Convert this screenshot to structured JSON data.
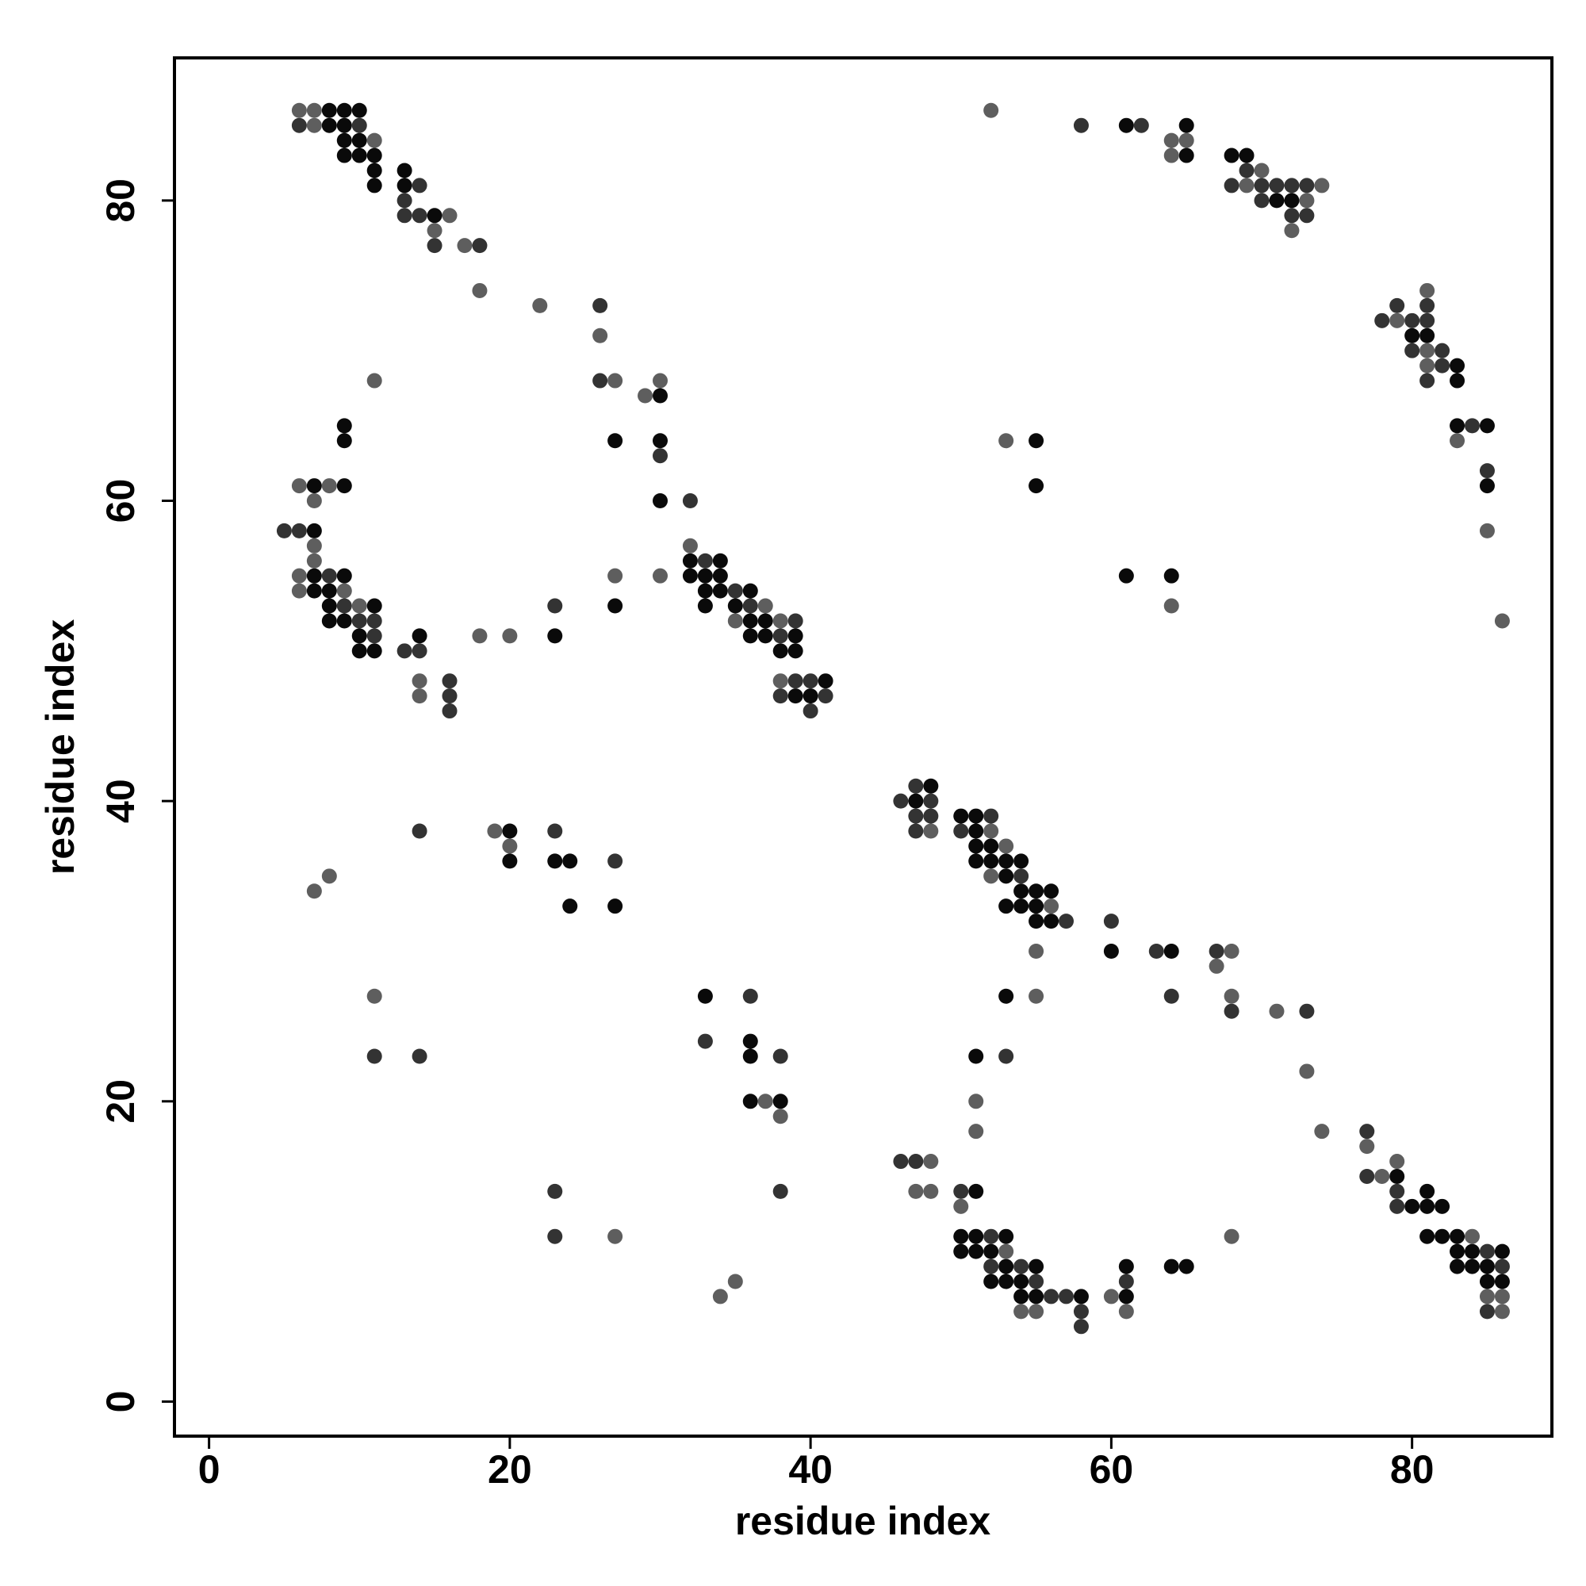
{
  "chart_data": {
    "type": "scatter",
    "xlabel": "residue index",
    "ylabel": "residue index",
    "xlim": [
      -2.3,
      89.3
    ],
    "ylim": [
      -2.3,
      89.5
    ],
    "xticks": [
      0,
      20,
      40,
      60,
      80
    ],
    "yticks": [
      0,
      20,
      40,
      60,
      80
    ],
    "grid": false,
    "series": [
      {
        "color": "#0a0a0a",
        "x": [
          8,
          9,
          10,
          8,
          9,
          61,
          65,
          9,
          10,
          9,
          10,
          11,
          65,
          68,
          69,
          11,
          13,
          11,
          13,
          71,
          72,
          15,
          80,
          81,
          83,
          83,
          30,
          9,
          83,
          85,
          9,
          27,
          30,
          55,
          7,
          9,
          55,
          85,
          30,
          7,
          32,
          34,
          7,
          9,
          32,
          33,
          34,
          61,
          64,
          7,
          8,
          33,
          34,
          36,
          8,
          11,
          27,
          33,
          35,
          8,
          9,
          36,
          37,
          10,
          14,
          23,
          36,
          37,
          39,
          10,
          11,
          38,
          39,
          41,
          39,
          40,
          48,
          47,
          50,
          51,
          20,
          51,
          51,
          52,
          20,
          23,
          24,
          51,
          52,
          53,
          54,
          53,
          54,
          55,
          56,
          24,
          27,
          53,
          54,
          55,
          55,
          56,
          60,
          64,
          33,
          53,
          36,
          36,
          51,
          36,
          38,
          79,
          51,
          81,
          80,
          81,
          82,
          50,
          51,
          53,
          81,
          82,
          83,
          50,
          51,
          52,
          83,
          84,
          86,
          53,
          55,
          61,
          64,
          65,
          83,
          84,
          85,
          52,
          53,
          54,
          85,
          86,
          54,
          55,
          58,
          61
        ],
        "y": [
          86,
          86,
          86,
          85,
          85,
          85,
          85,
          84,
          84,
          83,
          83,
          83,
          83,
          83,
          83,
          82,
          82,
          81,
          81,
          80,
          80,
          79,
          71,
          71,
          69,
          68,
          67,
          65,
          65,
          65,
          64,
          64,
          64,
          64,
          61,
          61,
          61,
          61,
          60,
          58,
          56,
          56,
          55,
          55,
          55,
          55,
          55,
          55,
          55,
          54,
          54,
          54,
          54,
          54,
          53,
          53,
          53,
          53,
          53,
          52,
          52,
          52,
          52,
          51,
          51,
          51,
          51,
          51,
          51,
          50,
          50,
          50,
          50,
          48,
          47,
          47,
          41,
          40,
          39,
          39,
          38,
          38,
          37,
          37,
          36,
          36,
          36,
          36,
          36,
          36,
          36,
          35,
          34,
          34,
          34,
          33,
          33,
          33,
          33,
          33,
          32,
          32,
          30,
          30,
          27,
          27,
          24,
          23,
          23,
          20,
          20,
          15,
          14,
          14,
          13,
          13,
          13,
          11,
          11,
          11,
          11,
          11,
          11,
          10,
          10,
          10,
          10,
          10,
          10,
          9,
          9,
          9,
          9,
          9,
          9,
          9,
          9,
          8,
          8,
          8,
          8,
          8,
          7,
          7,
          7,
          7
        ]
      },
      {
        "color": "#333333",
        "x": [
          6,
          10,
          58,
          62,
          69,
          14,
          68,
          70,
          71,
          72,
          73,
          13,
          70,
          13,
          14,
          72,
          73,
          15,
          18,
          26,
          79,
          81,
          78,
          80,
          81,
          80,
          82,
          82,
          26,
          81,
          84,
          30,
          85,
          32,
          5,
          6,
          33,
          8,
          35,
          9,
          23,
          36,
          10,
          11,
          39,
          11,
          38,
          13,
          14,
          16,
          39,
          40,
          16,
          38,
          41,
          16,
          40,
          47,
          46,
          48,
          47,
          48,
          52,
          14,
          23,
          47,
          50,
          27,
          54,
          57,
          60,
          63,
          67,
          36,
          64,
          68,
          73,
          33,
          11,
          14,
          38,
          53,
          77,
          46,
          47,
          77,
          23,
          38,
          50,
          79,
          79,
          23,
          52,
          85,
          52,
          54,
          86,
          55,
          61,
          56,
          57,
          58,
          85,
          58
        ],
        "y": [
          85,
          85,
          85,
          85,
          82,
          81,
          81,
          81,
          81,
          81,
          81,
          80,
          80,
          79,
          79,
          79,
          79,
          77,
          77,
          73,
          73,
          73,
          72,
          72,
          72,
          70,
          70,
          69,
          68,
          68,
          65,
          63,
          62,
          60,
          58,
          58,
          56,
          55,
          54,
          53,
          53,
          53,
          52,
          52,
          52,
          51,
          51,
          50,
          50,
          48,
          48,
          48,
          47,
          47,
          47,
          46,
          46,
          41,
          40,
          40,
          39,
          39,
          39,
          38,
          38,
          38,
          38,
          36,
          35,
          32,
          32,
          30,
          30,
          27,
          27,
          26,
          26,
          24,
          23,
          23,
          23,
          23,
          18,
          16,
          16,
          15,
          14,
          14,
          14,
          14,
          13,
          11,
          11,
          10,
          9,
          9,
          9,
          8,
          8,
          7,
          7,
          6,
          6,
          5
        ]
      },
      {
        "color": "#5e5e5e",
        "x": [
          6,
          7,
          52,
          7,
          11,
          64,
          65,
          64,
          70,
          69,
          74,
          73,
          16,
          15,
          72,
          17,
          18,
          81,
          22,
          79,
          26,
          81,
          81,
          11,
          27,
          30,
          29,
          53,
          83,
          6,
          8,
          7,
          85,
          7,
          32,
          7,
          6,
          27,
          30,
          6,
          9,
          10,
          37,
          64,
          35,
          38,
          86,
          18,
          20,
          14,
          38,
          14,
          19,
          48,
          52,
          20,
          53,
          8,
          52,
          7,
          56,
          55,
          68,
          67,
          11,
          55,
          68,
          71,
          73,
          37,
          51,
          38,
          51,
          74,
          77,
          48,
          79,
          78,
          47,
          48,
          50,
          27,
          68,
          84,
          53,
          35,
          34,
          60,
          85,
          86,
          54,
          55,
          61,
          86
        ],
        "y": [
          86,
          86,
          86,
          85,
          84,
          84,
          84,
          83,
          82,
          81,
          81,
          80,
          79,
          78,
          78,
          77,
          74,
          74,
          73,
          72,
          71,
          70,
          69,
          68,
          68,
          68,
          67,
          64,
          64,
          61,
          61,
          60,
          58,
          57,
          57,
          56,
          55,
          55,
          55,
          54,
          54,
          53,
          53,
          53,
          52,
          52,
          52,
          51,
          51,
          48,
          48,
          47,
          38,
          38,
          38,
          37,
          37,
          35,
          35,
          34,
          33,
          30,
          30,
          29,
          27,
          27,
          27,
          26,
          22,
          20,
          20,
          19,
          18,
          18,
          17,
          16,
          16,
          15,
          14,
          14,
          13,
          11,
          11,
          11,
          10,
          8,
          7,
          7,
          7,
          7,
          6,
          6,
          6,
          6
        ]
      }
    ]
  }
}
